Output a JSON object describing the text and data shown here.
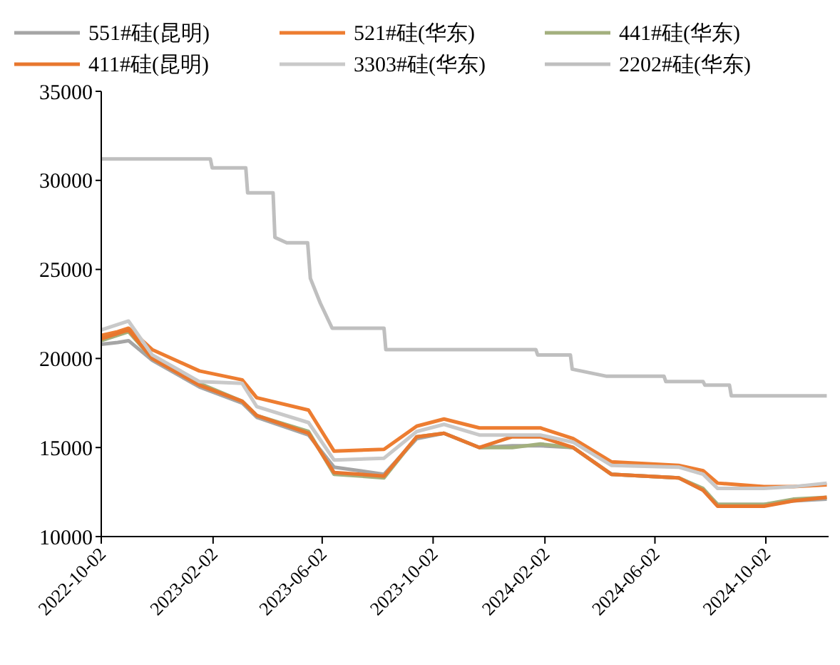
{
  "chart_data": {
    "type": "line",
    "legend": "top",
    "grid": false,
    "marker": "none",
    "line_style": "solid",
    "x": [
      "2022-10-02",
      "2022-10-20",
      "2022-11-01",
      "2022-11-27",
      "2023-01-18",
      "2023-03-06",
      "2023-03-22",
      "2023-05-18",
      "2023-06-15",
      "2023-08-09",
      "2023-09-14",
      "2023-10-14",
      "2023-11-22",
      "2023-12-28",
      "2024-01-28",
      "2024-03-04",
      "2024-04-15",
      "2024-06-28",
      "2024-07-25",
      "2024-08-10",
      "2024-09-30",
      "2024-11-01",
      "2024-12-08"
    ],
    "xlim": [
      "2022-10-02",
      "2024-12-10"
    ],
    "xticks": [
      "2022-10-02",
      "2023-02-02",
      "2023-06-02",
      "2023-10-02",
      "2024-02-02",
      "2024-06-02",
      "2024-10-02"
    ],
    "ylim": [
      10000,
      35000
    ],
    "yticks": [
      10000,
      15000,
      20000,
      25000,
      30000,
      35000
    ],
    "series": [
      {
        "name": "551#硅(昆明)",
        "color": "#a5a5a5",
        "values": [
          20800,
          20900,
          21000,
          19900,
          18400,
          17500,
          16700,
          15700,
          13900,
          13500,
          15500,
          15800,
          15000,
          15100,
          15100,
          15000,
          13500,
          13300,
          12600,
          11800,
          11800,
          12000,
          12100
        ]
      },
      {
        "name": "521#硅(华东)",
        "color": "#ed7d31",
        "values": [
          21300,
          21500,
          21700,
          20500,
          19300,
          18800,
          17800,
          17100,
          14800,
          14900,
          16200,
          16600,
          16100,
          16100,
          16100,
          15500,
          14200,
          14000,
          13700,
          13000,
          12800,
          12800,
          12900
        ]
      },
      {
        "name": "441#硅(华东)",
        "color": "#a3b07e",
        "values": [
          21000,
          21300,
          21500,
          20000,
          18600,
          17600,
          16800,
          15900,
          13500,
          13300,
          15600,
          15800,
          15000,
          15000,
          15200,
          15000,
          13500,
          13300,
          12700,
          11800,
          11800,
          12100,
          12200
        ]
      },
      {
        "name": "411#硅(昆明)",
        "color": "#e8772e",
        "values": [
          21100,
          21400,
          21600,
          20000,
          18500,
          17600,
          16800,
          15800,
          13600,
          13400,
          15600,
          15800,
          15000,
          15600,
          15600,
          15000,
          13500,
          13300,
          12600,
          11700,
          11700,
          12000,
          12200
        ]
      },
      {
        "name": "3303#硅(华东)",
        "color": "#c9c9c9",
        "values": [
          21600,
          21900,
          22100,
          20200,
          18700,
          18600,
          17300,
          16400,
          14300,
          14400,
          15900,
          16300,
          15700,
          15700,
          15700,
          15300,
          14000,
          13900,
          13500,
          12700,
          12700,
          12800,
          13000
        ]
      },
      {
        "name": "2202#硅(华东)",
        "color": "#bfbfbf",
        "x": [
          "2022-10-02",
          "2023-01-30",
          "2023-02-01",
          "2023-03-10",
          "2023-03-12",
          "2023-04-09",
          "2023-04-11",
          "2023-04-24",
          "2023-05-17",
          "2023-05-20",
          "2023-05-31",
          "2023-06-13",
          "2023-08-09",
          "2023-08-11",
          "2024-01-23",
          "2024-01-25",
          "2024-03-01",
          "2024-03-03",
          "2024-04-10",
          "2024-06-12",
          "2024-06-14",
          "2024-07-25",
          "2024-07-27",
          "2024-08-23",
          "2024-08-25",
          "2024-12-08"
        ],
        "values": [
          31200,
          31200,
          30700,
          30700,
          29300,
          29300,
          26800,
          26500,
          26500,
          24500,
          23100,
          21700,
          21700,
          20500,
          20500,
          20200,
          20200,
          19400,
          19000,
          19000,
          18700,
          18700,
          18500,
          18500,
          17900,
          17900
        ]
      }
    ]
  }
}
